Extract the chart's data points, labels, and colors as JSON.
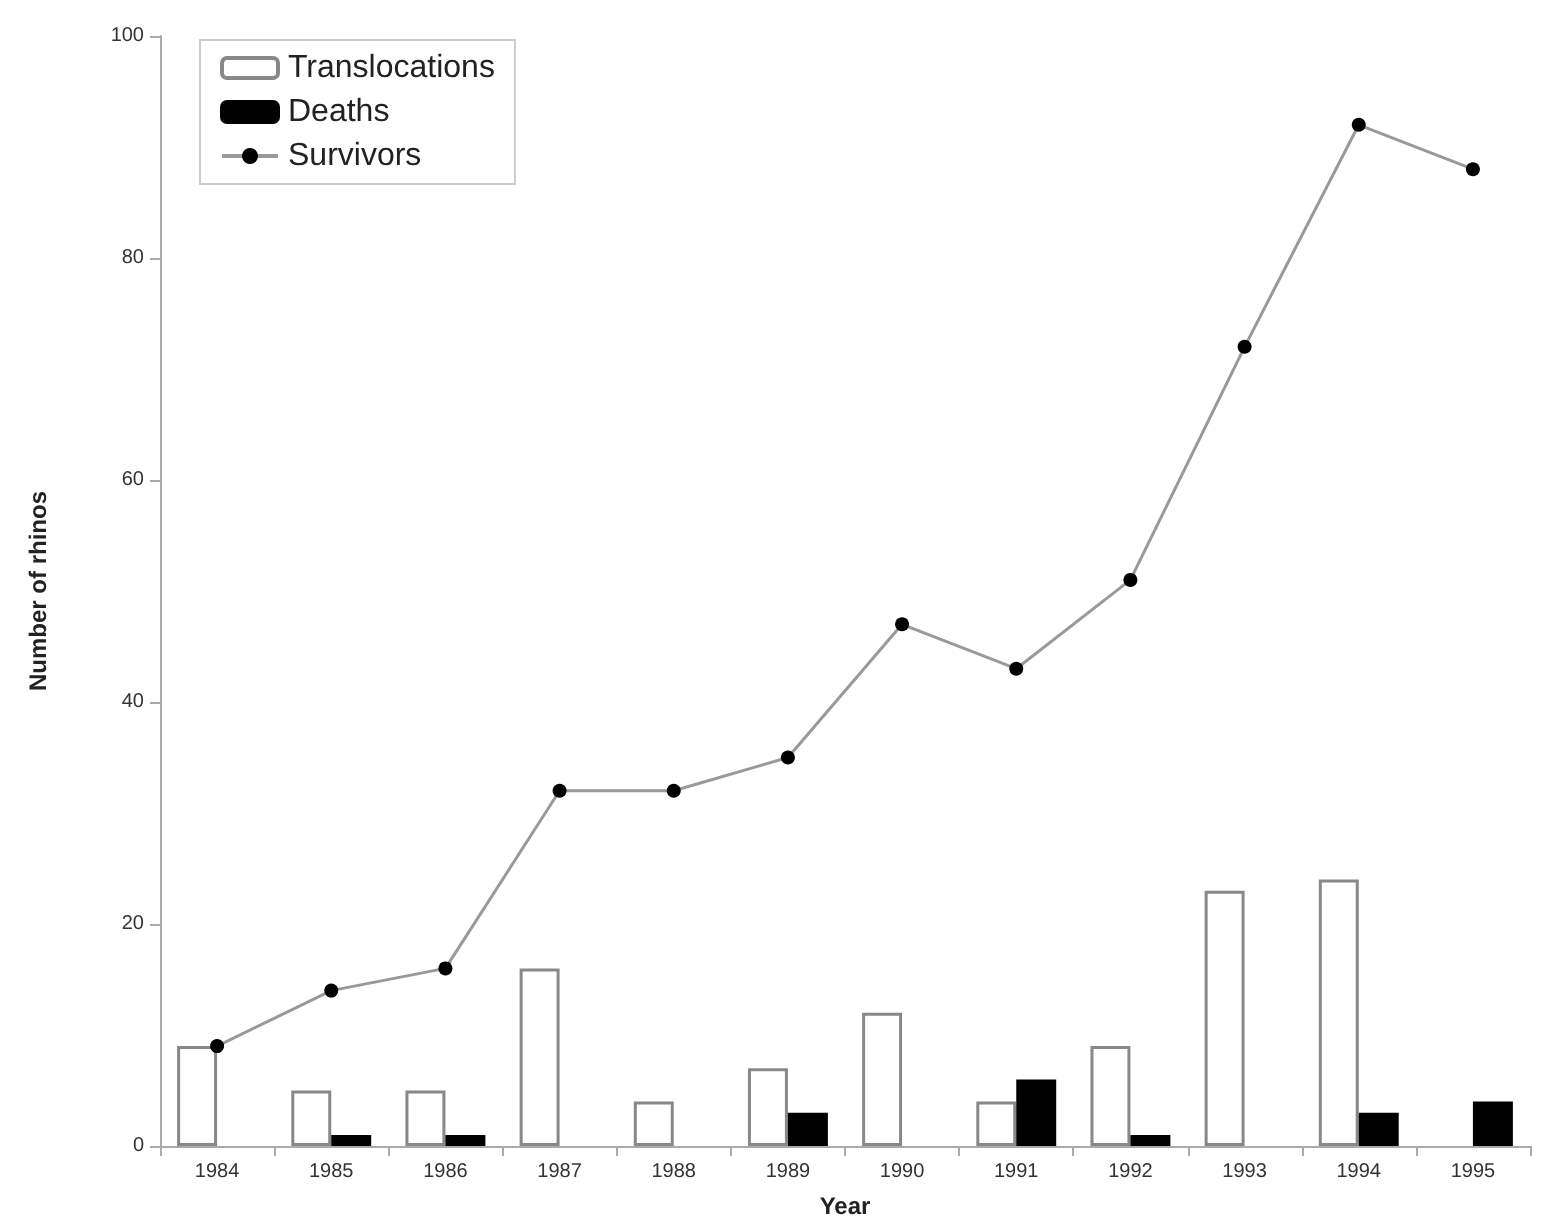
{
  "chart_data": {
    "type": "bar",
    "xlabel": "Year",
    "ylabel": "Number of rhinos",
    "categories": [
      "1984",
      "1985",
      "1986",
      "1987",
      "1988",
      "1989",
      "1990",
      "1991",
      "1992",
      "1993",
      "1994",
      "1995"
    ],
    "series": [
      {
        "name": "Translocations",
        "color": "#ffffff",
        "values": [
          9,
          5,
          5,
          16,
          4,
          7,
          12,
          4,
          9,
          23,
          24,
          0
        ]
      },
      {
        "name": "Deaths",
        "color": "#000000",
        "values": [
          0,
          1,
          1,
          0,
          0,
          3,
          0,
          6,
          1,
          0,
          3,
          4
        ]
      },
      {
        "name": "Survivors",
        "type": "line",
        "color": "#000000",
        "marker": "circle",
        "line_style": "solid",
        "values": [
          9,
          14,
          16,
          32,
          32,
          35,
          47,
          43,
          51,
          72,
          92,
          88
        ]
      }
    ],
    "ylim": [
      0,
      100
    ],
    "yticks": [
      0,
      20,
      40,
      60,
      80,
      100
    ],
    "grid": false,
    "legend": "top left"
  }
}
